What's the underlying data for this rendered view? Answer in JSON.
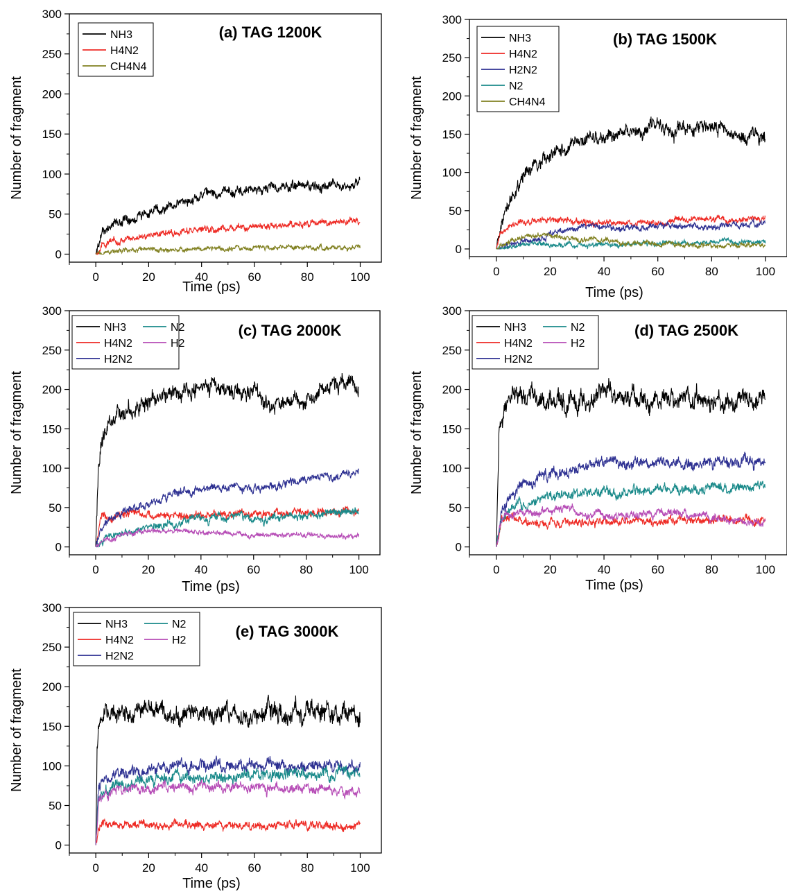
{
  "colors": {
    "NH3": "#000000",
    "H4N2": "#ee2a24",
    "H2N2": "#2e3192",
    "N2": "#1a8a8a",
    "H2": "#b64cb6",
    "CH4N4": "#808020"
  },
  "chart_data": [
    {
      "id": "a",
      "type": "line",
      "title": "(a) TAG 1200K",
      "xlabel": "Time (ps)",
      "ylabel": "Number of fragment",
      "xlim": [
        -10,
        108
      ],
      "ylim": [
        -10,
        300
      ],
      "xticks": [
        0,
        20,
        40,
        60,
        80,
        100
      ],
      "yticks": [
        0,
        50,
        100,
        150,
        200,
        250,
        300
      ],
      "legend": "top-left",
      "legend_columns": 1,
      "series": [
        {
          "name": "NH3",
          "color_key": "NH3",
          "x": [
            0,
            2,
            5,
            10,
            20,
            30,
            40,
            50,
            60,
            70,
            80,
            90,
            100
          ],
          "y": [
            0,
            25,
            35,
            42,
            52,
            62,
            73,
            78,
            80,
            83,
            85,
            87,
            88
          ],
          "noise": 6
        },
        {
          "name": "H4N2",
          "color_key": "H4N2",
          "x": [
            0,
            2,
            5,
            10,
            20,
            30,
            40,
            50,
            60,
            70,
            80,
            90,
            100
          ],
          "y": [
            0,
            10,
            15,
            18,
            24,
            28,
            30,
            32,
            34,
            36,
            38,
            40,
            42
          ],
          "noise": 4
        },
        {
          "name": "CH4N4",
          "color_key": "CH4N4",
          "x": [
            0,
            5,
            10,
            20,
            30,
            40,
            50,
            60,
            70,
            80,
            90,
            100
          ],
          "y": [
            0,
            3,
            4,
            5,
            6,
            7,
            7,
            8,
            9,
            8,
            8,
            8
          ],
          "noise": 3
        }
      ]
    },
    {
      "id": "b",
      "type": "line",
      "title": "(b) TAG 1500K",
      "xlabel": "Time (ps)",
      "ylabel": "Number of fragment",
      "xlim": [
        -10,
        108
      ],
      "ylim": [
        -10,
        300
      ],
      "xticks": [
        0,
        20,
        40,
        60,
        80,
        100
      ],
      "yticks": [
        0,
        50,
        100,
        150,
        200,
        250,
        300
      ],
      "legend": "top-left",
      "legend_columns": 1,
      "series": [
        {
          "name": "NH3",
          "color_key": "NH3",
          "x": [
            0,
            2,
            5,
            10,
            15,
            20,
            30,
            40,
            50,
            60,
            70,
            80,
            90,
            100
          ],
          "y": [
            0,
            40,
            65,
            95,
            110,
            120,
            138,
            148,
            152,
            158,
            155,
            162,
            145,
            145
          ],
          "noise": 9
        },
        {
          "name": "H4N2",
          "color_key": "H4N2",
          "x": [
            0,
            2,
            5,
            10,
            20,
            30,
            40,
            50,
            60,
            70,
            80,
            90,
            100
          ],
          "y": [
            0,
            25,
            33,
            36,
            38,
            35,
            33,
            33,
            36,
            38,
            38,
            38,
            40
          ],
          "noise": 4
        },
        {
          "name": "H2N2",
          "color_key": "H2N2",
          "x": [
            0,
            5,
            10,
            15,
            20,
            25,
            30,
            40,
            50,
            60,
            70,
            80,
            90,
            100
          ],
          "y": [
            0,
            5,
            8,
            12,
            18,
            25,
            28,
            28,
            28,
            30,
            30,
            28,
            32,
            35
          ],
          "noise": 4
        },
        {
          "name": "N2",
          "color_key": "N2",
          "x": [
            0,
            5,
            10,
            20,
            30,
            40,
            50,
            60,
            70,
            80,
            90,
            100
          ],
          "y": [
            0,
            3,
            5,
            6,
            5,
            5,
            6,
            7,
            8,
            9,
            8,
            8
          ],
          "noise": 3
        },
        {
          "name": "CH4N4",
          "color_key": "CH4N4",
          "x": [
            0,
            5,
            10,
            15,
            20,
            25,
            30,
            40,
            50,
            60,
            70,
            80,
            90,
            100
          ],
          "y": [
            0,
            12,
            15,
            18,
            18,
            15,
            12,
            10,
            8,
            7,
            6,
            5,
            5,
            5
          ],
          "noise": 3
        }
      ]
    },
    {
      "id": "c",
      "type": "line",
      "title": "(c) TAG 2000K",
      "xlabel": "Time (ps)",
      "ylabel": "Number of fragment",
      "xlim": [
        -10,
        108
      ],
      "ylim": [
        -10,
        300
      ],
      "xticks": [
        0,
        20,
        40,
        60,
        80,
        100
      ],
      "yticks": [
        0,
        50,
        100,
        150,
        200,
        250,
        300
      ],
      "legend": "top-left",
      "legend_columns": 2,
      "series": [
        {
          "name": "NH3",
          "color_key": "NH3",
          "x": [
            0,
            1,
            3,
            5,
            10,
            20,
            30,
            40,
            50,
            60,
            65,
            70,
            80,
            90,
            100
          ],
          "y": [
            0,
            100,
            140,
            155,
            170,
            185,
            195,
            205,
            200,
            195,
            180,
            185,
            190,
            205,
            200
          ],
          "noise": 10
        },
        {
          "name": "H4N2",
          "color_key": "H4N2",
          "x": [
            0,
            2,
            5,
            10,
            20,
            30,
            40,
            50,
            60,
            70,
            80,
            90,
            100
          ],
          "y": [
            0,
            35,
            38,
            42,
            40,
            38,
            40,
            42,
            42,
            42,
            44,
            44,
            45
          ],
          "noise": 5
        },
        {
          "name": "H2N2",
          "color_key": "H2N2",
          "x": [
            0,
            2,
            5,
            10,
            20,
            30,
            40,
            50,
            60,
            70,
            80,
            90,
            100
          ],
          "y": [
            0,
            25,
            35,
            45,
            55,
            70,
            75,
            75,
            75,
            80,
            85,
            92,
            92
          ],
          "noise": 5
        },
        {
          "name": "N2",
          "color_key": "N2",
          "x": [
            0,
            5,
            10,
            20,
            30,
            40,
            50,
            60,
            70,
            80,
            90,
            100
          ],
          "y": [
            0,
            12,
            18,
            25,
            30,
            35,
            38,
            35,
            38,
            40,
            42,
            45
          ],
          "noise": 5
        },
        {
          "name": "H2",
          "color_key": "H2",
          "x": [
            0,
            5,
            10,
            20,
            30,
            40,
            50,
            60,
            70,
            80,
            90,
            100
          ],
          "y": [
            0,
            10,
            15,
            20,
            20,
            18,
            18,
            14,
            16,
            15,
            14,
            13
          ],
          "noise": 3
        }
      ]
    },
    {
      "id": "d",
      "type": "line",
      "title": "(d) TAG 2500K",
      "xlabel": "Time (ps)",
      "ylabel": "Number of fragment",
      "xlim": [
        -10,
        108
      ],
      "ylim": [
        -10,
        300
      ],
      "xticks": [
        0,
        20,
        40,
        60,
        80,
        100
      ],
      "yticks": [
        0,
        50,
        100,
        150,
        200,
        250,
        300
      ],
      "legend": "top-left",
      "legend_columns": 2,
      "series": [
        {
          "name": "NH3",
          "color_key": "NH3",
          "x": [
            0,
            1,
            3,
            5,
            10,
            20,
            30,
            40,
            50,
            60,
            70,
            80,
            90,
            100
          ],
          "y": [
            0,
            140,
            175,
            185,
            190,
            190,
            180,
            200,
            190,
            185,
            190,
            185,
            185,
            190
          ],
          "noise": 12
        },
        {
          "name": "H4N2",
          "color_key": "H4N2",
          "x": [
            0,
            2,
            5,
            10,
            20,
            30,
            40,
            50,
            60,
            70,
            80,
            90,
            100
          ],
          "y": [
            0,
            35,
            35,
            33,
            30,
            32,
            32,
            33,
            33,
            33,
            33,
            33,
            33
          ],
          "noise": 5
        },
        {
          "name": "H2N2",
          "color_key": "H2N2",
          "x": [
            0,
            2,
            5,
            10,
            20,
            30,
            40,
            50,
            60,
            70,
            80,
            90,
            100
          ],
          "y": [
            0,
            40,
            60,
            80,
            95,
            100,
            110,
            105,
            105,
            105,
            108,
            108,
            110
          ],
          "noise": 7
        },
        {
          "name": "N2",
          "color_key": "N2",
          "x": [
            0,
            2,
            5,
            10,
            20,
            30,
            40,
            50,
            60,
            70,
            80,
            90,
            100
          ],
          "y": [
            0,
            30,
            45,
            55,
            65,
            68,
            70,
            70,
            72,
            72,
            75,
            75,
            78
          ],
          "noise": 6
        },
        {
          "name": "H2",
          "color_key": "H2",
          "x": [
            0,
            2,
            5,
            10,
            20,
            25,
            30,
            40,
            50,
            60,
            70,
            80,
            90,
            100
          ],
          "y": [
            0,
            35,
            40,
            42,
            45,
            55,
            45,
            40,
            40,
            45,
            40,
            38,
            35,
            30
          ],
          "noise": 5
        }
      ]
    },
    {
      "id": "e",
      "type": "line",
      "title": "(e) TAG 3000K",
      "xlabel": "Time (ps)",
      "ylabel": "Number of fragment",
      "xlim": [
        -10,
        108
      ],
      "ylim": [
        -10,
        300
      ],
      "xticks": [
        0,
        20,
        40,
        60,
        80,
        100
      ],
      "yticks": [
        0,
        50,
        100,
        150,
        200,
        250,
        300
      ],
      "legend": "top-left",
      "legend_columns": 2,
      "series": [
        {
          "name": "NH3",
          "color_key": "NH3",
          "x": [
            0,
            0.5,
            1,
            3,
            10,
            20,
            30,
            40,
            50,
            60,
            70,
            80,
            90,
            100
          ],
          "y": [
            0,
            120,
            160,
            165,
            165,
            170,
            165,
            165,
            165,
            165,
            168,
            165,
            165,
            168
          ],
          "noise": 12
        },
        {
          "name": "H4N2",
          "color_key": "H4N2",
          "x": [
            0,
            1,
            3,
            10,
            20,
            30,
            40,
            50,
            60,
            70,
            80,
            90,
            100
          ],
          "y": [
            0,
            25,
            25,
            25,
            25,
            25,
            25,
            25,
            25,
            25,
            25,
            25,
            25
          ],
          "noise": 5
        },
        {
          "name": "H2N2",
          "color_key": "H2N2",
          "x": [
            0,
            1,
            3,
            10,
            20,
            30,
            40,
            50,
            60,
            70,
            80,
            90,
            100
          ],
          "y": [
            0,
            70,
            80,
            90,
            95,
            100,
            100,
            100,
            100,
            100,
            100,
            100,
            100
          ],
          "noise": 7
        },
        {
          "name": "N2",
          "color_key": "N2",
          "x": [
            0,
            1,
            3,
            10,
            20,
            30,
            40,
            50,
            60,
            70,
            80,
            90,
            100
          ],
          "y": [
            0,
            60,
            70,
            78,
            82,
            85,
            85,
            85,
            88,
            88,
            90,
            90,
            90
          ],
          "noise": 7
        },
        {
          "name": "H2",
          "color_key": "H2",
          "x": [
            0,
            1,
            3,
            10,
            20,
            30,
            40,
            50,
            60,
            70,
            80,
            90,
            100
          ],
          "y": [
            0,
            55,
            65,
            70,
            72,
            75,
            75,
            75,
            72,
            72,
            72,
            70,
            68
          ],
          "noise": 6
        }
      ]
    }
  ]
}
